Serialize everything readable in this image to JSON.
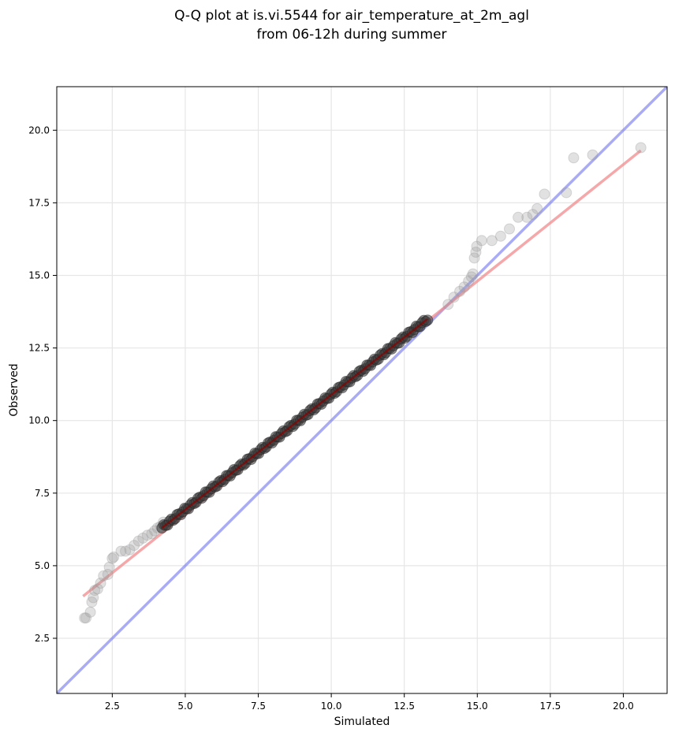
{
  "chart_data": {
    "type": "scatter",
    "title_line1": "Q-Q plot at is.vi.5544 for air_temperature_at_2m_agl",
    "title_line2": "from 06-12h during summer",
    "xlabel": "Simulated",
    "ylabel": "Observed",
    "xlim": [
      0.6,
      21.5
    ],
    "ylim": [
      0.6,
      21.5
    ],
    "x_ticks": [
      2.5,
      5.0,
      7.5,
      10.0,
      12.5,
      15.0,
      17.5,
      20.0
    ],
    "y_ticks": [
      2.5,
      5.0,
      7.5,
      10.0,
      12.5,
      15.0,
      17.5,
      20.0
    ],
    "x_tick_labels": [
      "2.5",
      "5.0",
      "7.5",
      "10.0",
      "12.5",
      "15.0",
      "17.5",
      "20.0"
    ],
    "y_tick_labels": [
      "2.5",
      "5.0",
      "7.5",
      "10.0",
      "12.5",
      "15.0",
      "17.5",
      "20.0"
    ],
    "grid": true,
    "point_color": "#9a9a9a",
    "identity_line": {
      "color": "#6f75ef",
      "from": [
        0.6,
        0.6
      ],
      "to": [
        21.5,
        21.5
      ]
    },
    "fit_line": {
      "color": "#f28b8e",
      "from": [
        1.5,
        3.95
      ],
      "to": [
        20.6,
        19.3
      ]
    },
    "core_segment_color": "#8b0000",
    "core_segment": {
      "from": [
        4.2,
        6.3
      ],
      "to": [
        13.3,
        13.5
      ]
    },
    "tail_points": [
      [
        1.55,
        3.2
      ],
      [
        1.6,
        3.2
      ],
      [
        1.75,
        3.4
      ],
      [
        1.8,
        3.75
      ],
      [
        1.85,
        3.9
      ],
      [
        1.9,
        4.15
      ],
      [
        2.0,
        4.2
      ],
      [
        2.1,
        4.4
      ],
      [
        2.2,
        4.65
      ],
      [
        2.35,
        4.7
      ],
      [
        2.4,
        4.95
      ],
      [
        2.5,
        5.25
      ],
      [
        2.55,
        5.3
      ],
      [
        2.8,
        5.5
      ],
      [
        2.95,
        5.5
      ],
      [
        3.1,
        5.55
      ],
      [
        3.25,
        5.7
      ],
      [
        3.4,
        5.85
      ],
      [
        3.55,
        5.95
      ],
      [
        3.7,
        6.05
      ],
      [
        3.85,
        6.1
      ],
      [
        3.95,
        6.2
      ],
      [
        4.05,
        6.3
      ],
      [
        4.15,
        6.35
      ],
      [
        4.25,
        6.5
      ],
      [
        14.0,
        14.0
      ],
      [
        14.2,
        14.25
      ],
      [
        14.4,
        14.45
      ],
      [
        14.55,
        14.6
      ],
      [
        14.7,
        14.8
      ],
      [
        14.8,
        14.95
      ],
      [
        14.85,
        15.05
      ],
      [
        14.9,
        15.6
      ],
      [
        14.95,
        15.8
      ],
      [
        14.98,
        16.0
      ],
      [
        15.15,
        16.2
      ],
      [
        15.5,
        16.2
      ],
      [
        15.8,
        16.35
      ],
      [
        16.1,
        16.6
      ],
      [
        16.4,
        17.0
      ],
      [
        16.7,
        17.0
      ],
      [
        16.9,
        17.1
      ],
      [
        17.05,
        17.3
      ],
      [
        17.3,
        17.8
      ],
      [
        18.05,
        17.85
      ],
      [
        18.3,
        19.05
      ],
      [
        18.95,
        19.15
      ],
      [
        20.6,
        19.4
      ]
    ]
  }
}
